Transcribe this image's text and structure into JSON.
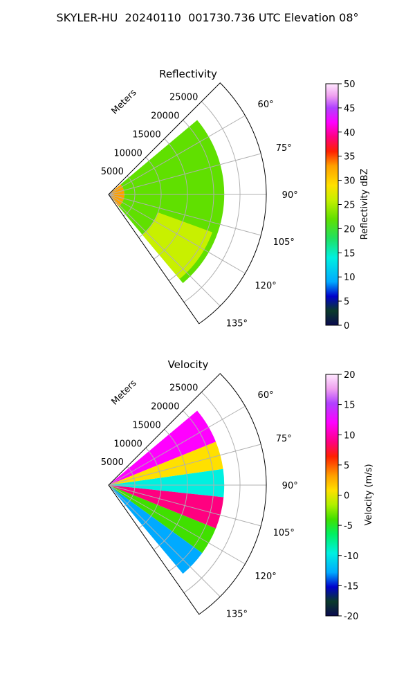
{
  "figure": {
    "title": "SKYLER-HU  20240110  001730.736 UTC Elevation 08°"
  },
  "chart_data": [
    {
      "type": "heatmap",
      "projection": "polar-sector",
      "title": "Reflectivity",
      "range_label": "Meters",
      "range_ticks": [
        5000,
        10000,
        15000,
        20000,
        25000
      ],
      "range_lim": [
        0,
        30000
      ],
      "azimuth_lim": [
        45,
        145
      ],
      "azimuth_ticks": [
        "60°",
        "75°",
        "90°",
        "105°",
        "120°",
        "135°"
      ],
      "grid": true,
      "colorbar": {
        "label": "Reflectivity dBZ",
        "ticks": [
          0,
          5,
          10,
          15,
          20,
          25,
          30,
          35,
          40,
          45,
          50
        ],
        "range": [
          0,
          50
        ],
        "position": "right"
      },
      "fields": [
        {
          "az": [
            50,
            140
          ],
          "range": [
            0,
            3000
          ],
          "value": 35
        },
        {
          "az": [
            50,
            140
          ],
          "range": [
            3000,
            22000
          ],
          "value": 22
        },
        {
          "az": [
            110,
            140
          ],
          "range": [
            10000,
            21000
          ],
          "value": 28
        }
      ]
    },
    {
      "type": "heatmap",
      "projection": "polar-sector",
      "title": "Velocity",
      "range_label": "Meters",
      "range_ticks": [
        5000,
        10000,
        15000,
        20000,
        25000
      ],
      "range_lim": [
        0,
        30000
      ],
      "azimuth_lim": [
        45,
        145
      ],
      "azimuth_ticks": [
        "60°",
        "75°",
        "90°",
        "105°",
        "120°",
        "135°"
      ],
      "grid": true,
      "colorbar": {
        "label": "Velocity (m/s)",
        "ticks": [
          -20,
          -15,
          -10,
          -5,
          0,
          5,
          10,
          15,
          20
        ],
        "range": [
          -20,
          20
        ],
        "position": "right"
      },
      "fields": [
        {
          "az": [
            50,
            68
          ],
          "range": [
            0,
            22000
          ],
          "value": 12
        },
        {
          "az": [
            68,
            82
          ],
          "range": [
            0,
            22000
          ],
          "value": 2
        },
        {
          "az": [
            82,
            96
          ],
          "range": [
            0,
            22000
          ],
          "value": -9
        },
        {
          "az": [
            96,
            112
          ],
          "range": [
            0,
            22000
          ],
          "value": 10
        },
        {
          "az": [
            112,
            126
          ],
          "range": [
            0,
            22000
          ],
          "value": -3
        },
        {
          "az": [
            126,
            140
          ],
          "range": [
            0,
            22000
          ],
          "value": -12
        }
      ]
    }
  ]
}
